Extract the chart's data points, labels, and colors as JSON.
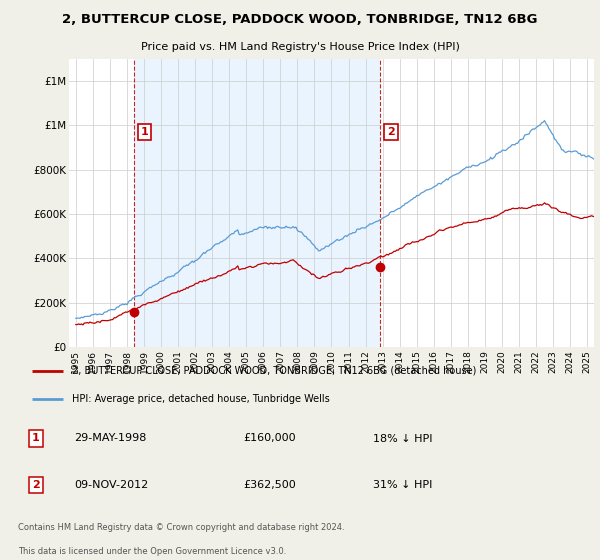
{
  "title": "2, BUTTERCUP CLOSE, PADDOCK WOOD, TONBRIDGE, TN12 6BG",
  "subtitle": "Price paid vs. HM Land Registry's House Price Index (HPI)",
  "ylim": [
    0,
    1300000
  ],
  "yticks": [
    0,
    200000,
    400000,
    600000,
    800000,
    1000000,
    1200000
  ],
  "line_color_hpi": "#5b9bd5",
  "line_color_price": "#c00000",
  "bg_color": "#f0f0e8",
  "plot_bg": "#ffffff",
  "shade_color": "#ddeeff",
  "sale1_date": 1998.41,
  "sale1_price": 160000,
  "sale2_date": 2012.86,
  "sale2_price": 362500,
  "legend1": "2, BUTTERCUP CLOSE, PADDOCK WOOD, TONBRIDGE, TN12 6BG (detached house)",
  "legend2": "HPI: Average price, detached house, Tunbridge Wells",
  "footnote1": "Contains HM Land Registry data © Crown copyright and database right 2024.",
  "footnote2": "This data is licensed under the Open Government Licence v3.0.",
  "annotation1_date": "29-MAY-1998",
  "annotation1_price": "£160,000",
  "annotation1_pct": "18% ↓ HPI",
  "annotation2_date": "09-NOV-2012",
  "annotation2_price": "£362,500",
  "annotation2_pct": "31% ↓ HPI"
}
